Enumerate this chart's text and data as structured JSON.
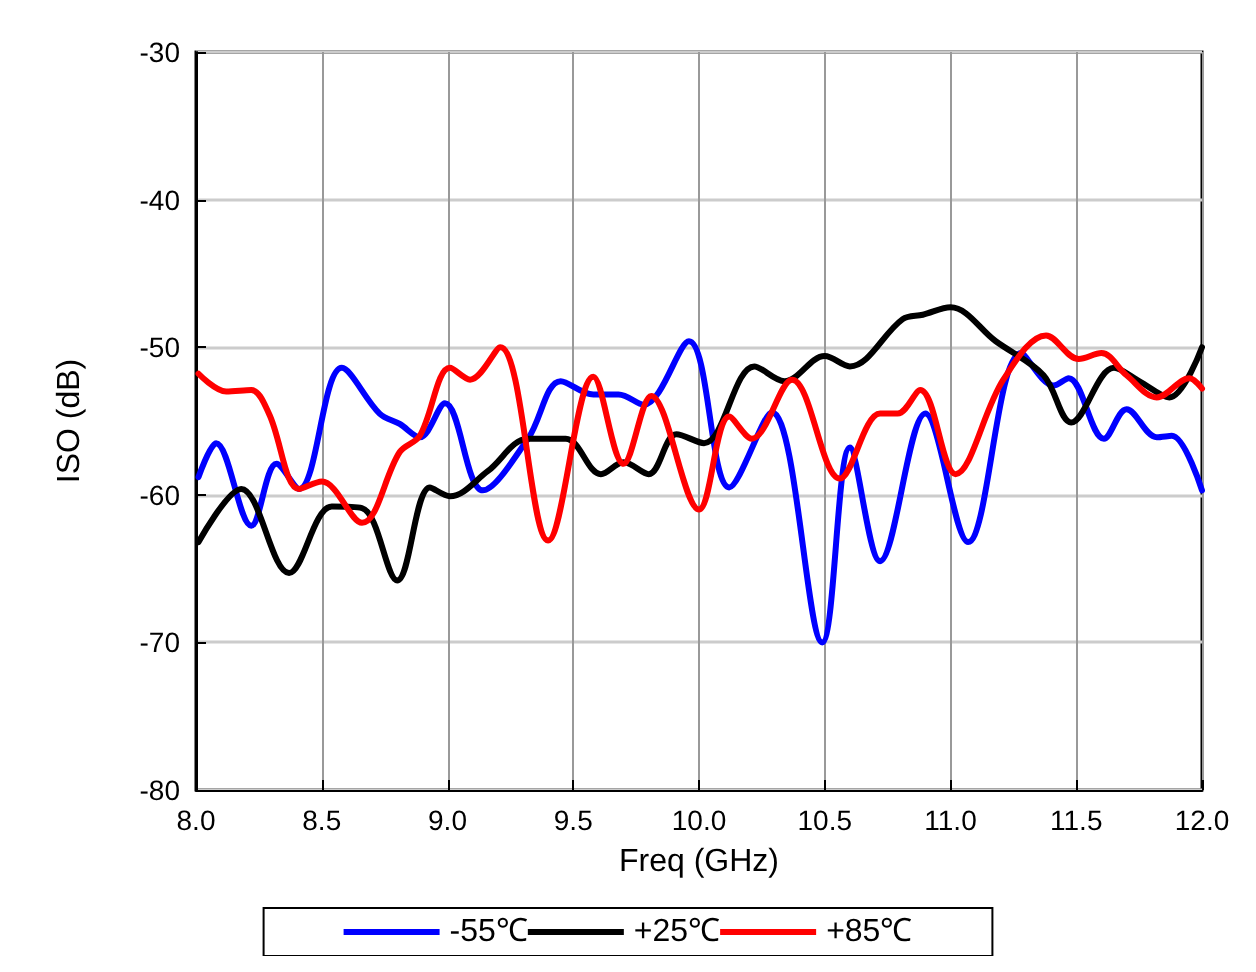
{
  "chart_data": {
    "type": "line",
    "xlabel": "Freq (GHz)",
    "ylabel": "ISO (dB)",
    "xlim": [
      8.0,
      12.0
    ],
    "xticks": [
      {
        "value": 8,
        "label": "8.0"
      },
      {
        "value": 8.5,
        "label": "8.5"
      },
      {
        "value": 9,
        "label": "9.0"
      },
      {
        "value": 9.5,
        "label": "9.5"
      },
      {
        "value": 10,
        "label": "10.0"
      },
      {
        "value": 10.5,
        "label": "10.5"
      },
      {
        "value": 11,
        "label": "11.0"
      },
      {
        "value": 11.5,
        "label": "11.5"
      },
      {
        "value": 12,
        "label": "12.0"
      }
    ],
    "ylim": [
      -80,
      -30
    ],
    "yticks": [
      -80,
      -70,
      -60,
      -50,
      -40,
      -30
    ],
    "grid": true,
    "legend": "bottom",
    "marker": "none",
    "line_style": "solid",
    "series": [
      {
        "name": "-55℃",
        "color": "#0000ff",
        "x": [
          8.01,
          8.08,
          8.22,
          8.32,
          8.41,
          8.58,
          8.73,
          8.81,
          8.89,
          8.99,
          9.14,
          9.32,
          9.45,
          9.58,
          9.68,
          9.78,
          9.96,
          10.12,
          10.29,
          10.49,
          10.6,
          10.72,
          10.9,
          11.07,
          11.28,
          11.41,
          11.47,
          11.61,
          11.7,
          11.82,
          11.88,
          12.0
        ],
        "values": [
          -58.8,
          -56.5,
          -62.1,
          -57.9,
          -59.6,
          -51.4,
          -54.5,
          -55.2,
          -56.1,
          -53.8,
          -59.7,
          -56.2,
          -52.3,
          -53.2,
          -53.2,
          -53.9,
          -49.6,
          -59.5,
          -54.4,
          -70.0,
          -56.8,
          -64.5,
          -54.5,
          -63.2,
          -50.4,
          -52.6,
          -52.1,
          -56.2,
          -54.2,
          -56.1,
          -56.0,
          -59.7
        ]
      },
      {
        "name": "+25℃",
        "color": "#000000",
        "x": [
          8.01,
          8.18,
          8.37,
          8.54,
          8.66,
          8.8,
          8.93,
          9.01,
          9.16,
          9.32,
          9.47,
          9.61,
          9.7,
          9.8,
          9.91,
          10.02,
          10.22,
          10.34,
          10.5,
          10.6,
          10.81,
          10.89,
          11.0,
          11.18,
          11.37,
          11.48,
          11.65,
          11.75,
          11.87,
          12.0
        ],
        "values": [
          -63.2,
          -59.6,
          -65.3,
          -60.8,
          -60.9,
          -65.8,
          -59.5,
          -60.1,
          -58.4,
          -56.2,
          -56.2,
          -58.6,
          -57.8,
          -58.6,
          -55.9,
          -56.5,
          -51.3,
          -52.3,
          -50.6,
          -51.3,
          -48.1,
          -47.8,
          -47.3,
          -49.6,
          -51.9,
          -55.1,
          -51.4,
          -52.3,
          -53.4,
          -50.0
        ]
      },
      {
        "name": "+85℃",
        "color": "#ff0000",
        "x": [
          8.01,
          8.12,
          8.22,
          8.29,
          8.41,
          8.5,
          8.66,
          8.81,
          8.89,
          9.01,
          9.09,
          9.21,
          9.4,
          9.58,
          9.7,
          9.81,
          10.0,
          10.12,
          10.21,
          10.37,
          10.56,
          10.72,
          10.79,
          10.88,
          11.02,
          11.21,
          11.38,
          11.51,
          11.6,
          11.7,
          11.82,
          11.95,
          12.0
        ],
        "values": [
          -51.8,
          -53.0,
          -52.9,
          -54.5,
          -59.6,
          -59.1,
          -61.9,
          -57.1,
          -56.0,
          -51.4,
          -52.2,
          -50.0,
          -63.1,
          -52.0,
          -57.9,
          -53.3,
          -61.0,
          -54.7,
          -56.2,
          -52.2,
          -58.9,
          -54.5,
          -54.5,
          -52.9,
          -58.6,
          -52.2,
          -49.2,
          -50.8,
          -50.4,
          -51.9,
          -53.4,
          -52.1,
          -52.8
        ]
      }
    ]
  }
}
